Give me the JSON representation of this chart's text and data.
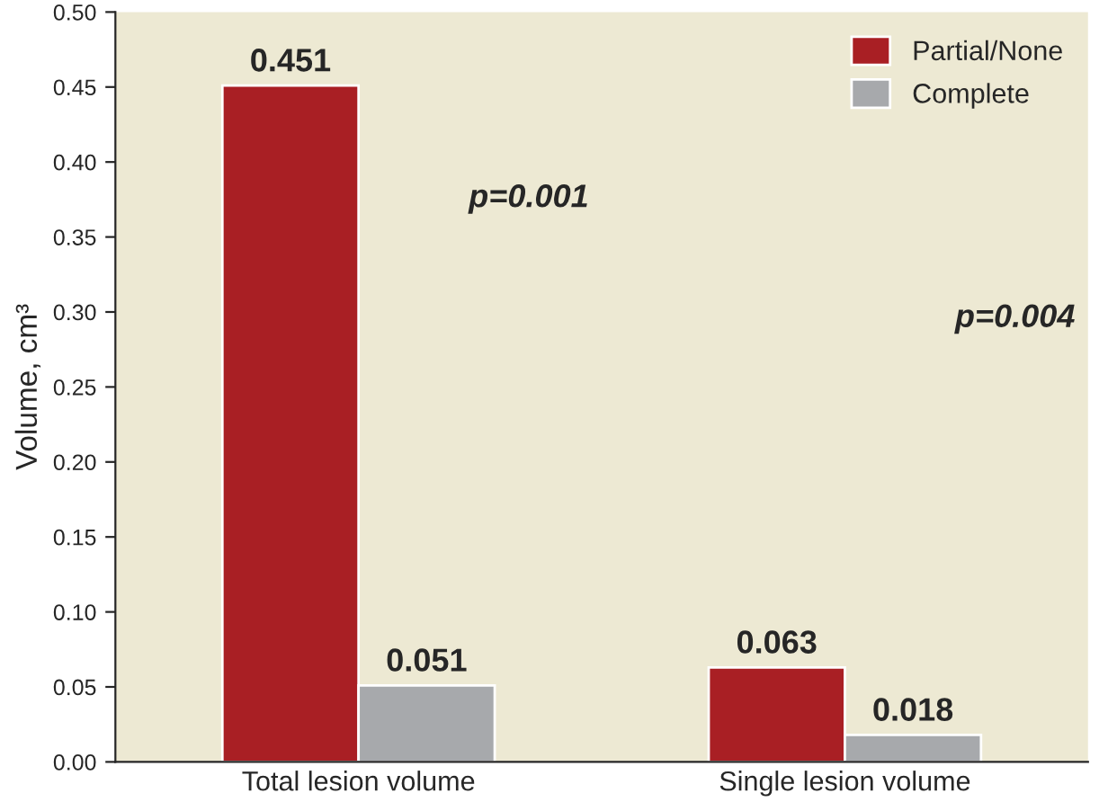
{
  "chart_data": {
    "type": "bar",
    "categories": [
      "Total lesion volume",
      "Single lesion volume"
    ],
    "series": [
      {
        "name": "Partial/None",
        "color": "#a91f24",
        "values": [
          0.451,
          0.063
        ]
      },
      {
        "name": "Complete",
        "color": "#a7a9ac",
        "values": [
          0.051,
          0.018
        ]
      }
    ],
    "ylabel": "Volume, cm³",
    "ylim": [
      0,
      0.5
    ],
    "yticks": [
      {
        "value": 0,
        "label": "0.00"
      },
      {
        "value": 0.05,
        "label": "0.05"
      },
      {
        "value": 0.1,
        "label": "0.10"
      },
      {
        "value": 0.15,
        "label": "0.15"
      },
      {
        "value": 0.2,
        "label": "0.20"
      },
      {
        "value": 0.25,
        "label": "0.25"
      },
      {
        "value": 0.3,
        "label": "0.30"
      },
      {
        "value": 0.35,
        "label": "0.35"
      },
      {
        "value": 0.4,
        "label": "0.40"
      },
      {
        "value": 0.45,
        "label": "0.45"
      },
      {
        "value": 0.5,
        "label": "0.50"
      }
    ],
    "annotations": [
      "p=0.001",
      "p=0.004"
    ],
    "data_labels": true,
    "grid": false,
    "legend": "top right"
  }
}
